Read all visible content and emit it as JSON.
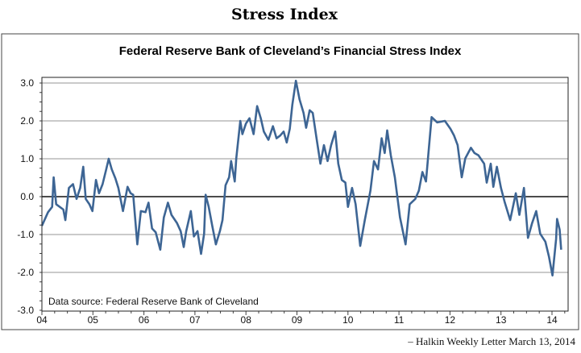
{
  "page_title": "Stress Index",
  "footer": "– Halkin Weekly Letter March 13, 2014",
  "chart_data": {
    "type": "line",
    "title": "Federal Reserve Bank of Cleveland’s Financial Stress Index",
    "annotation": "Data source: Federal Reserve Bank of Cleveland",
    "xlabel": "",
    "ylabel": "",
    "ylim": [
      -3.0,
      3.0
    ],
    "xlim": [
      2004,
      2014.3
    ],
    "yticks": [
      "3.0",
      "2.0",
      "1.0",
      "0.0",
      "-1.0",
      "-2.0",
      "-3.0"
    ],
    "ytick_values": [
      3,
      2,
      1,
      0,
      -1,
      -2,
      -3
    ],
    "xticks": [
      "04",
      "05",
      "06",
      "07",
      "08",
      "09",
      "10",
      "11",
      "12",
      "13",
      "14"
    ],
    "grid": true,
    "line_color": "#3d6594",
    "series": [
      {
        "name": "Financial Stress Index",
        "x": [
          2004.0,
          2004.12,
          2004.2,
          2004.23,
          2004.28,
          2004.42,
          2004.46,
          2004.53,
          2004.61,
          2004.68,
          2004.75,
          2004.81,
          2004.86,
          2004.93,
          2004.99,
          2005.06,
          2005.12,
          2005.19,
          2005.26,
          2005.31,
          2005.37,
          2005.44,
          2005.5,
          2005.59,
          2005.68,
          2005.74,
          2005.79,
          2005.87,
          2005.94,
          2006.03,
          2006.09,
          2006.16,
          2006.23,
          2006.32,
          2006.39,
          2006.47,
          2006.54,
          2006.65,
          2006.72,
          2006.78,
          2006.83,
          2006.92,
          2006.98,
          2007.05,
          2007.12,
          2007.18,
          2007.21,
          2007.27,
          2007.34,
          2007.41,
          2007.49,
          2007.54,
          2007.6,
          2007.67,
          2007.71,
          2007.78,
          2007.81,
          2007.89,
          2007.93,
          2008.0,
          2008.07,
          2008.15,
          2008.22,
          2008.29,
          2008.35,
          2008.44,
          2008.53,
          2008.6,
          2008.67,
          2008.74,
          2008.8,
          2008.86,
          2008.91,
          2008.98,
          2009.05,
          2009.13,
          2009.18,
          2009.25,
          2009.31,
          2009.38,
          2009.46,
          2009.53,
          2009.6,
          2009.67,
          2009.75,
          2009.81,
          2009.88,
          2009.95,
          2010.0,
          2010.08,
          2010.15,
          2010.24,
          2010.33,
          2010.44,
          2010.51,
          2010.59,
          2010.66,
          2010.72,
          2010.77,
          2010.84,
          2010.92,
          2011.02,
          2011.13,
          2011.21,
          2011.32,
          2011.39,
          2011.46,
          2011.53,
          2011.64,
          2011.75,
          2011.9,
          2012.01,
          2012.08,
          2012.15,
          2012.23,
          2012.3,
          2012.41,
          2012.48,
          2012.56,
          2012.67,
          2012.72,
          2012.8,
          2012.85,
          2012.92,
          2013.0,
          2013.07,
          2013.18,
          2013.29,
          2013.36,
          2013.45,
          2013.53,
          2013.61,
          2013.69,
          2013.77,
          2013.87,
          2013.94,
          2014.01,
          2014.08,
          2014.1,
          2014.15,
          2014.18
        ],
        "values": [
          -0.77,
          -0.41,
          -0.27,
          0.51,
          -0.2,
          -0.34,
          -0.62,
          0.23,
          0.33,
          -0.06,
          0.23,
          0.79,
          -0.06,
          -0.2,
          -0.38,
          0.44,
          0.09,
          0.33,
          0.72,
          1.0,
          0.72,
          0.48,
          0.23,
          -0.38,
          0.26,
          0.09,
          0.05,
          -1.26,
          -0.38,
          -0.41,
          -0.16,
          -0.84,
          -0.94,
          -1.4,
          -0.55,
          -0.16,
          -0.48,
          -0.7,
          -0.91,
          -1.33,
          -0.91,
          -0.38,
          -1.05,
          -0.91,
          -1.51,
          -0.98,
          0.05,
          -0.27,
          -0.77,
          -1.26,
          -0.91,
          -0.62,
          0.3,
          0.51,
          0.94,
          0.4,
          1.01,
          2.0,
          1.65,
          1.93,
          2.07,
          1.65,
          2.39,
          2.07,
          1.72,
          1.5,
          1.86,
          1.54,
          1.61,
          1.72,
          1.43,
          1.79,
          2.43,
          3.06,
          2.57,
          2.21,
          1.82,
          2.28,
          2.21,
          1.57,
          0.87,
          1.36,
          0.94,
          1.36,
          1.72,
          0.87,
          0.44,
          0.37,
          -0.27,
          0.23,
          -0.2,
          -1.3,
          -0.62,
          0.16,
          0.94,
          0.72,
          1.54,
          1.15,
          1.75,
          1.09,
          0.51,
          -0.55,
          -1.26,
          -0.2,
          -0.06,
          0.16,
          0.65,
          0.4,
          2.1,
          1.96,
          2.0,
          1.79,
          1.61,
          1.36,
          0.51,
          1.01,
          1.29,
          1.15,
          1.09,
          0.87,
          0.37,
          0.87,
          0.26,
          0.79,
          0.23,
          -0.13,
          -0.62,
          0.09,
          -0.48,
          0.23,
          -1.09,
          -0.7,
          -0.38,
          -0.98,
          -1.19,
          -1.58,
          -2.08,
          -1.12,
          -0.59,
          -0.87,
          -1.4
        ]
      }
    ]
  }
}
